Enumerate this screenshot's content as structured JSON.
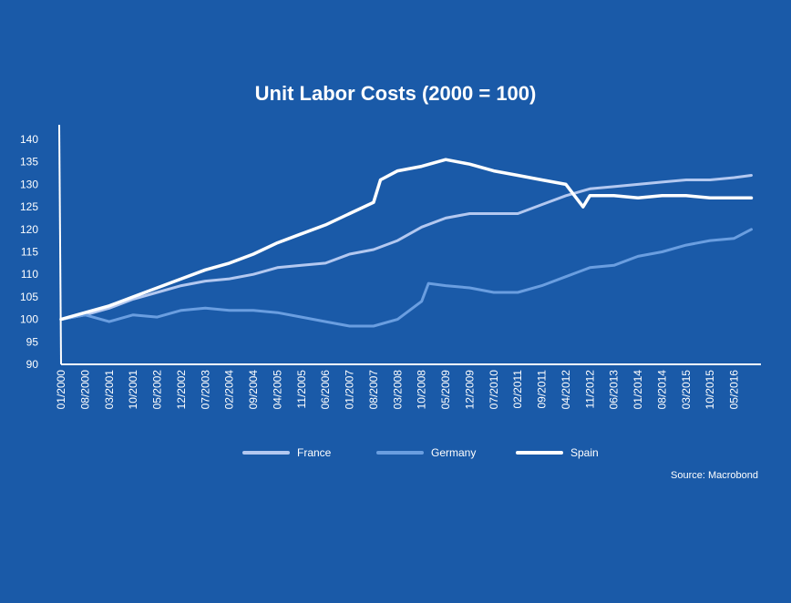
{
  "chart_data": {
    "type": "line",
    "title": "Unit Labor Costs (2000 = 100)",
    "source": "Source: Macrobond",
    "xlabel": "",
    "ylabel": "",
    "ylim": [
      90,
      140
    ],
    "yticks": [
      90,
      95,
      100,
      105,
      110,
      115,
      120,
      125,
      130,
      135,
      140
    ],
    "xlim": [
      "2000-01",
      "2016-12"
    ],
    "xtick_labels": [
      "01/2000",
      "08/2000",
      "03/2001",
      "10/2001",
      "05/2002",
      "12/2002",
      "07/2003",
      "02/2004",
      "09/2004",
      "04/2005",
      "11/2005",
      "06/2006",
      "01/2007",
      "08/2007",
      "03/2008",
      "10/2008",
      "05/2009",
      "12/2009",
      "07/2010",
      "02/2011",
      "09/2011",
      "04/2012",
      "11/2012",
      "06/2013",
      "01/2014",
      "08/2014",
      "03/2015",
      "10/2015",
      "05/2016"
    ],
    "grid": false,
    "legend_position": "bottom",
    "series": [
      {
        "name": "France",
        "color": "#b3c8f0",
        "x": [
          "2000-01",
          "2000-08",
          "2001-03",
          "2001-10",
          "2002-05",
          "2002-12",
          "2003-07",
          "2004-02",
          "2004-09",
          "2005-04",
          "2005-11",
          "2006-06",
          "2007-01",
          "2007-08",
          "2008-03",
          "2008-10",
          "2009-05",
          "2009-12",
          "2010-07",
          "2011-02",
          "2011-09",
          "2012-04",
          "2012-11",
          "2013-06",
          "2014-01",
          "2014-08",
          "2015-03",
          "2015-10",
          "2016-05",
          "2016-10"
        ],
        "values": [
          100,
          101,
          102.5,
          104.5,
          106,
          107.5,
          108.5,
          109,
          110,
          111.5,
          112,
          112.5,
          114.5,
          115.5,
          117.5,
          120.5,
          122.5,
          123.5,
          123.5,
          123.5,
          125.5,
          127.5,
          129,
          129.5,
          130,
          130.5,
          131,
          131,
          131.5,
          132
        ]
      },
      {
        "name": "Germany",
        "color": "#6a9ee0",
        "x": [
          "2000-01",
          "2000-08",
          "2001-03",
          "2001-10",
          "2002-05",
          "2002-12",
          "2003-07",
          "2004-02",
          "2004-09",
          "2005-04",
          "2005-11",
          "2006-06",
          "2007-01",
          "2007-08",
          "2008-03",
          "2008-10",
          "2008-12",
          "2009-05",
          "2009-12",
          "2010-07",
          "2011-02",
          "2011-09",
          "2012-04",
          "2012-11",
          "2013-06",
          "2014-01",
          "2014-08",
          "2015-03",
          "2015-10",
          "2016-05",
          "2016-10"
        ],
        "values": [
          100,
          101,
          99.5,
          101,
          100.5,
          102,
          102.5,
          102,
          102,
          101.5,
          100.5,
          99.5,
          98.5,
          98.5,
          100,
          104,
          108,
          107.5,
          107,
          106,
          106,
          107.5,
          109.5,
          111.5,
          112,
          114,
          115,
          116.5,
          117.5,
          118,
          120
        ]
      },
      {
        "name": "Spain",
        "color": "#ffffff",
        "x": [
          "2000-01",
          "2000-08",
          "2001-03",
          "2001-10",
          "2002-05",
          "2002-12",
          "2003-07",
          "2004-02",
          "2004-09",
          "2005-04",
          "2005-11",
          "2006-06",
          "2007-01",
          "2007-08",
          "2007-10",
          "2008-03",
          "2008-10",
          "2009-05",
          "2009-12",
          "2010-07",
          "2011-02",
          "2011-09",
          "2012-04",
          "2012-09",
          "2012-11",
          "2013-06",
          "2014-01",
          "2014-08",
          "2015-03",
          "2015-10",
          "2016-05",
          "2016-10"
        ],
        "values": [
          100,
          101.5,
          103,
          105,
          107,
          109,
          111,
          112.5,
          114.5,
          117,
          119,
          121,
          123.5,
          126,
          131,
          133,
          134,
          135.5,
          134.5,
          133,
          132,
          131,
          130,
          125,
          127.5,
          127.5,
          127,
          127.5,
          127.5,
          127,
          127,
          127
        ]
      }
    ]
  }
}
